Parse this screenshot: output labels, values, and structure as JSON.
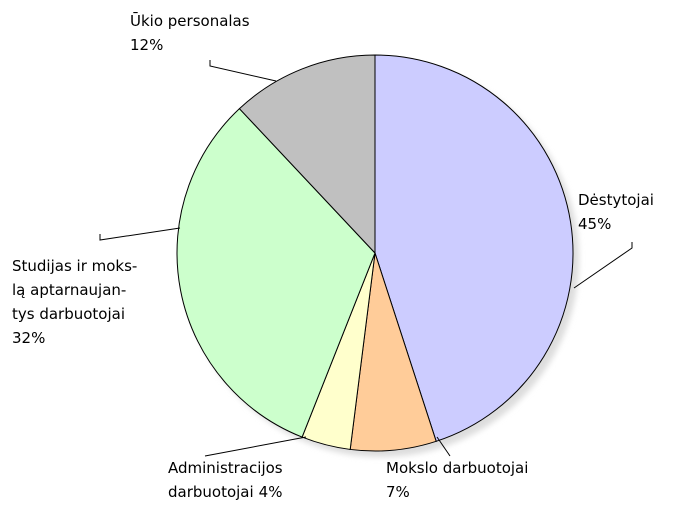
{
  "chart_data": {
    "type": "pie",
    "categories": [
      [
        "Dėstytojai"
      ],
      [
        "Mokslo darbuotojai"
      ],
      [
        "Administracijos",
        "darbuotojai"
      ],
      [
        "Studijas ir moks-",
        "lą aptarnaujan-",
        "tys darbuotojai"
      ],
      [
        "Ūkio personalas"
      ]
    ],
    "values": [
      45,
      7,
      4,
      32,
      12
    ],
    "value_labels": [
      "45%",
      "7%",
      "4%",
      "32%",
      "12%"
    ],
    "colors": [
      "#ccccff",
      "#ffcc99",
      "#ffffcc",
      "#ccffcc",
      "#c0c0c0"
    ]
  }
}
